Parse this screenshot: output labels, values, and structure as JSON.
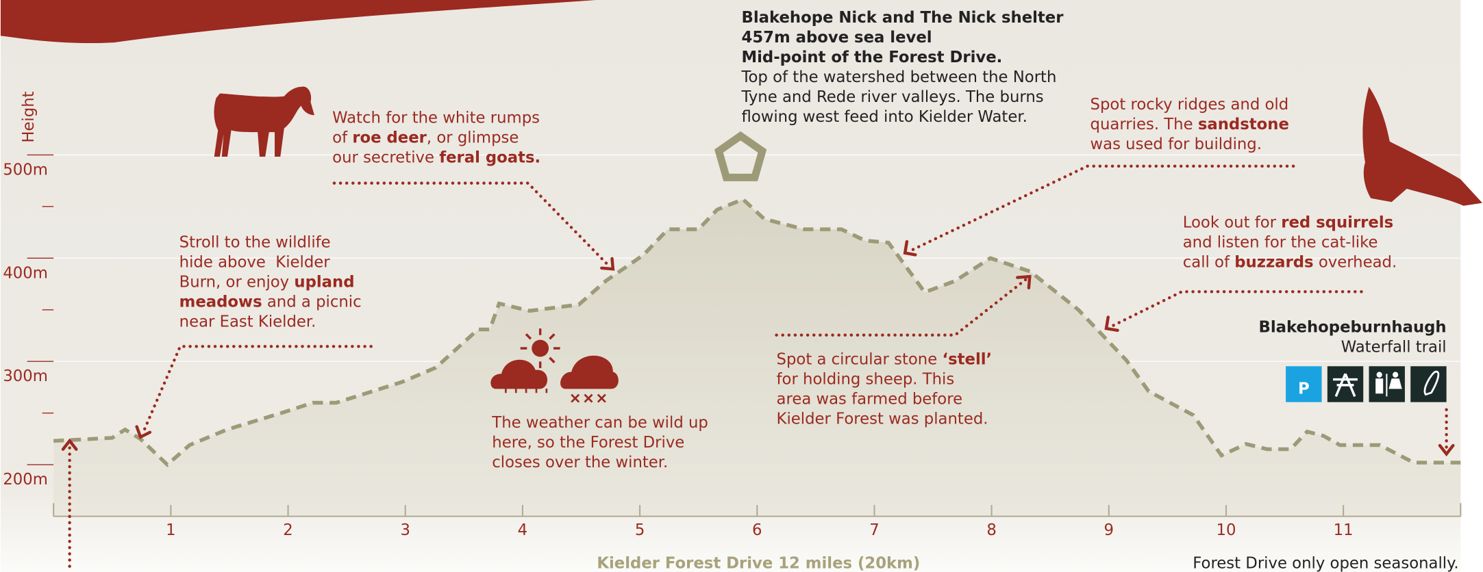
{
  "chart_data": {
    "type": "area",
    "title": "Blakehope Nick and The Nick shelter",
    "y_label": "Height",
    "x_label": "Kielder Forest Drive 12 miles (20km)",
    "note": "Forest Drive only open seasonally.",
    "parking_label": "P",
    "line_color": "#9d9a78",
    "accent_color": "#9b2a20",
    "xlim": [
      0,
      12
    ],
    "ylim": [
      150,
      650
    ],
    "xticks": [
      1,
      2,
      3,
      4,
      5,
      6,
      7,
      8,
      9,
      10,
      11
    ],
    "yticks": [
      {
        "value": 200,
        "label": "200m"
      },
      {
        "value": 300,
        "label": "300m"
      },
      {
        "value": 400,
        "label": "400m"
      },
      {
        "value": 500,
        "label": "500m"
      }
    ],
    "yminorticks": [
      250,
      350,
      450
    ],
    "grid": true,
    "x": [
      0,
      0.5,
      0.61,
      0.74,
      0.97,
      1.16,
      1.48,
      1.97,
      2.21,
      2.41,
      2.97,
      3.26,
      3.62,
      3.72,
      3.8,
      4.06,
      4.48,
      4.71,
      5.03,
      5.24,
      5.5,
      5.66,
      5.88,
      6.06,
      6.4,
      6.72,
      6.92,
      7.12,
      7.43,
      7.69,
      7.99,
      8.33,
      8.74,
      9.15,
      9.34,
      9.72,
      9.96,
      10.17,
      10.35,
      10.55,
      10.69,
      10.83,
      10.97,
      11.31,
      11.6,
      12
    ],
    "values": [
      223,
      226,
      234,
      225,
      200,
      219,
      234,
      251,
      260,
      260,
      280,
      294,
      331,
      331,
      356,
      349,
      355,
      378,
      403,
      428,
      428,
      447,
      457,
      438,
      428,
      428,
      417,
      415,
      367,
      378,
      400,
      387,
      350,
      301,
      271,
      248,
      209,
      220,
      215,
      215,
      232,
      228,
      219,
      219,
      202,
      202
    ],
    "annotations": [
      {
        "color": "#9b2a20",
        "lines": [
          [
            {
              "text": "Stroll to the wildlife"
            }
          ],
          [
            {
              "text": "hide above  Kielder"
            }
          ],
          [
            {
              "text": "Burn, or enjoy "
            },
            {
              "text": "upland",
              "bold": true
            }
          ],
          [
            {
              "text": "meadows",
              "bold": true
            },
            {
              "text": " and a picnic"
            }
          ],
          [
            {
              "text": "near East Kielder."
            }
          ]
        ]
      },
      {
        "color": "#9b2a20",
        "lines": [
          [
            {
              "text": "Watch for the white rumps"
            }
          ],
          [
            {
              "text": "of "
            },
            {
              "text": "roe deer",
              "bold": true
            },
            {
              "text": ", or glimpse"
            }
          ],
          [
            {
              "text": "our secretive "
            },
            {
              "text": "feral goats.",
              "bold": true
            }
          ]
        ]
      },
      {
        "color": "#222222",
        "lines": [
          [
            {
              "text": "457m above sea level",
              "bold": true
            }
          ],
          [
            {
              "text": "Mid-point of the Forest Drive.",
              "bold": true
            }
          ],
          [
            {
              "text": "Top of the watershed between the North"
            }
          ],
          [
            {
              "text": "Tyne and Rede river valleys. The burns"
            }
          ],
          [
            {
              "text": "flowing west feed into Kielder Water."
            }
          ]
        ]
      },
      {
        "color": "#9b2a20",
        "lines": [
          [
            {
              "text": "Spot rocky ridges and old"
            }
          ],
          [
            {
              "text": "quarries. The "
            },
            {
              "text": "sandstone",
              "bold": true
            }
          ],
          [
            {
              "text": "was used for building."
            }
          ]
        ]
      },
      {
        "color": "#9b2a20",
        "lines": [
          [
            {
              "text": "Look out for "
            },
            {
              "text": "red squirrels",
              "bold": true
            }
          ],
          [
            {
              "text": "and listen for the cat-like"
            }
          ],
          [
            {
              "text": "call of "
            },
            {
              "text": "buzzards",
              "bold": true
            },
            {
              "text": " overhead."
            }
          ]
        ]
      },
      {
        "color": "#222222",
        "lines": [
          [
            {
              "text": "Blakehopeburnhaugh",
              "bold": true
            }
          ],
          [
            {
              "text": "Waterfall trail"
            }
          ]
        ]
      },
      {
        "color": "#9b2a20",
        "lines": [
          [
            {
              "text": "Spot a circular stone "
            },
            {
              "text": "‘stell’",
              "bold": true
            }
          ],
          [
            {
              "text": "for holding sheep. This"
            }
          ],
          [
            {
              "text": "area was farmed before"
            }
          ],
          [
            {
              "text": "Kielder Forest was planted."
            }
          ]
        ]
      },
      {
        "color": "#9b2a20",
        "lines": [
          [
            {
              "text": "The weather can be wild up"
            }
          ],
          [
            {
              "text": "here, so the Forest Drive"
            }
          ],
          [
            {
              "text": "closes over the winter."
            }
          ]
        ]
      }
    ]
  }
}
